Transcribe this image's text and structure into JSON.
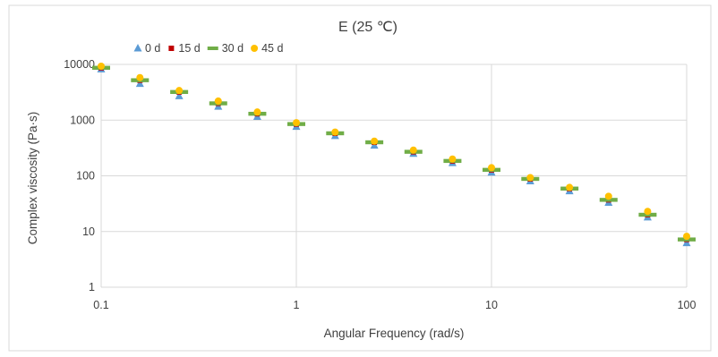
{
  "chart_data": {
    "type": "scatter",
    "title": "E (25 ℃)",
    "xlabel": "Angular Frequency (rad/s)",
    "ylabel": "Complex viscosity  (Pa·s)",
    "x_scale": "log",
    "y_scale": "log",
    "xlim": [
      0.1,
      100
    ],
    "ylim": [
      1,
      10000
    ],
    "x_ticks": [
      "0.1",
      "1",
      "10",
      "100"
    ],
    "y_ticks": [
      "1",
      "10",
      "100",
      "1000",
      "10000"
    ],
    "grid": "on",
    "legend_position": "top",
    "x": [
      0.1,
      0.158,
      0.251,
      0.398,
      0.631,
      1,
      1.58,
      2.51,
      3.98,
      6.31,
      10,
      15.8,
      25.1,
      39.8,
      63.1,
      100
    ],
    "series": [
      {
        "name": "0 d",
        "marker": "triangle",
        "color": "#5b9bd5",
        "values": [
          8200,
          4500,
          2700,
          1750,
          1150,
          760,
          520,
          350,
          250,
          170,
          115,
          80,
          53,
          33,
          18,
          6.2
        ]
      },
      {
        "name": "15 d",
        "marker": "square",
        "color": "#c00000",
        "values": [
          8700,
          5200,
          3200,
          2000,
          1300,
          850,
          580,
          400,
          270,
          185,
          128,
          88,
          59,
          37,
          20,
          7.2
        ]
      },
      {
        "name": "30 d",
        "marker": "dash",
        "color": "#70ad47",
        "values": [
          8700,
          5200,
          3200,
          2000,
          1300,
          850,
          580,
          400,
          270,
          185,
          128,
          88,
          59,
          37,
          20,
          7.2
        ]
      },
      {
        "name": "45 d",
        "marker": "circle",
        "color": "#ffc000",
        "values": [
          9300,
          5800,
          3400,
          2200,
          1400,
          900,
          610,
          420,
          290,
          200,
          140,
          93,
          62,
          43,
          23,
          8.2
        ]
      }
    ]
  }
}
